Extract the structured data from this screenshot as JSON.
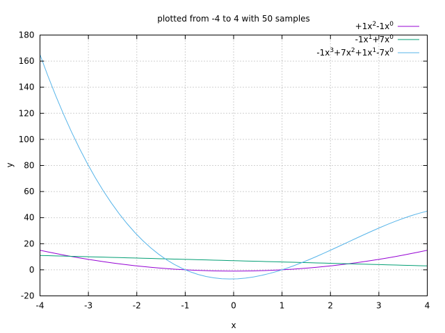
{
  "chart_data": {
    "type": "line",
    "title": "plotted from -4 to 4 with 50 samples",
    "xlabel": "x",
    "ylabel": "y",
    "xlim": [
      -4,
      4
    ],
    "ylim": [
      -20,
      180
    ],
    "x_ticks": [
      "-4",
      "-3",
      "-2",
      "-1",
      "0",
      "1",
      "2",
      "3",
      "4"
    ],
    "y_ticks": [
      "-20",
      "0",
      "20",
      "40",
      "60",
      "80",
      "100",
      "120",
      "140",
      "160",
      "180"
    ],
    "grid": true,
    "legend_position": "top-right",
    "samples": 50,
    "series": [
      {
        "legend": [
          {
            "text": "+1x"
          },
          {
            "text": "2",
            "sup": true
          },
          {
            "text": "-1x"
          },
          {
            "text": "0",
            "sup": true
          }
        ],
        "coefficients": [
          1,
          0,
          -1
        ],
        "color": "#9400d3"
      },
      {
        "legend": [
          {
            "text": "-1x"
          },
          {
            "text": "1",
            "sup": true
          },
          {
            "text": "+7x"
          },
          {
            "text": "0",
            "sup": true
          }
        ],
        "coefficients": [
          -1,
          7
        ],
        "color": "#009e73"
      },
      {
        "legend": [
          {
            "text": "-1x"
          },
          {
            "text": "3",
            "sup": true
          },
          {
            "text": "+7x"
          },
          {
            "text": "2",
            "sup": true
          },
          {
            "text": "+1x"
          },
          {
            "text": "1",
            "sup": true
          },
          {
            "text": "-7x"
          },
          {
            "text": "0",
            "sup": true
          }
        ],
        "coefficients": [
          -1,
          7,
          1,
          -7
        ],
        "color": "#56b4e9"
      }
    ]
  }
}
